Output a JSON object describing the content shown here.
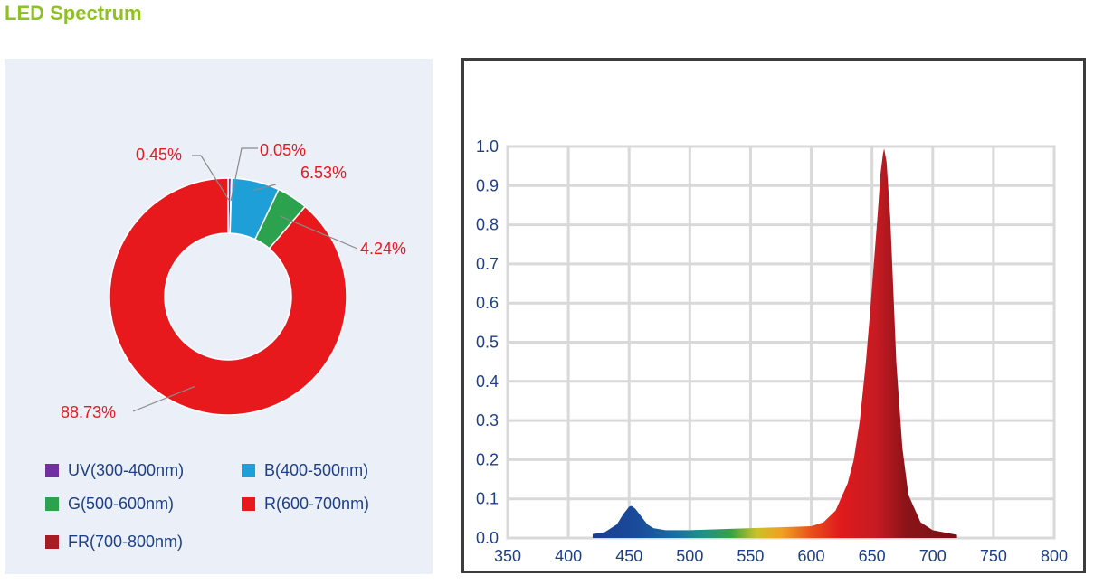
{
  "page_title": "LED Spectrum",
  "chart_data": [
    {
      "type": "pie",
      "variant": "donut",
      "slices": [
        {
          "name": "UV(300-400nm)",
          "value": 0.45,
          "label": "0.45%",
          "color": "#7030a0"
        },
        {
          "name": "B(400-500nm)",
          "value": 6.53,
          "label": "6.53%",
          "color": "#1f9fd8"
        },
        {
          "name": "G(500-600nm)",
          "value": 4.24,
          "label": "4.24%",
          "color": "#2ca24e"
        },
        {
          "name": "R(600-700nm)",
          "value": 88.73,
          "label": "88.73%",
          "color": "#e8191d"
        },
        {
          "name": "FR(700-800nm)",
          "value": 0.05,
          "label": "0.05%",
          "color": "#a61c22"
        }
      ],
      "label_color": "#e8191d",
      "legend_placement": "bottom"
    },
    {
      "type": "area",
      "xlim": [
        350,
        800
      ],
      "ylim": [
        0.0,
        1.0
      ],
      "x_ticks": [
        "350",
        "400",
        "450",
        "500",
        "550",
        "600",
        "650",
        "700",
        "750",
        "800"
      ],
      "y_ticks": [
        "0.0",
        "0.1",
        "0.2",
        "0.3",
        "0.4",
        "0.5",
        "0.6",
        "0.7",
        "0.8",
        "0.9",
        "1.0"
      ],
      "grid": true,
      "x": [
        420,
        430,
        440,
        445,
        450,
        452,
        455,
        460,
        465,
        470,
        480,
        500,
        550,
        600,
        610,
        620,
        630,
        635,
        640,
        645,
        648,
        650,
        652,
        655,
        657,
        659,
        660,
        662,
        665,
        668,
        670,
        675,
        680,
        690,
        700,
        720
      ],
      "y": [
        0.01,
        0.015,
        0.035,
        0.06,
        0.08,
        0.082,
        0.075,
        0.055,
        0.035,
        0.025,
        0.02,
        0.02,
        0.025,
        0.03,
        0.04,
        0.07,
        0.14,
        0.2,
        0.3,
        0.45,
        0.56,
        0.64,
        0.72,
        0.84,
        0.93,
        0.98,
        0.995,
        0.96,
        0.82,
        0.6,
        0.45,
        0.23,
        0.11,
        0.04,
        0.02,
        0.008
      ]
    }
  ]
}
